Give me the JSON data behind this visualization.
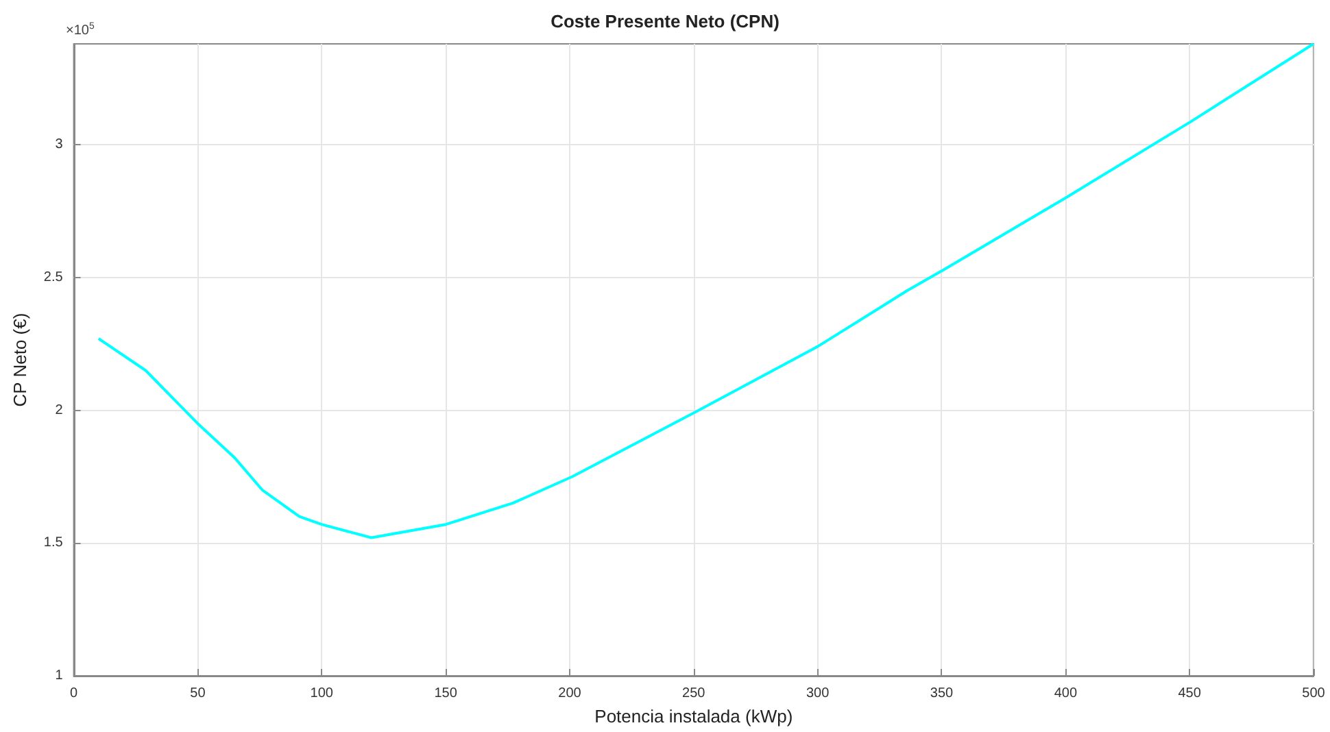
{
  "chart_data": {
    "type": "line",
    "title": "Coste Presente Neto (CPN)",
    "xlabel": "Potencia instalada (kWp)",
    "ylabel": "CP Neto (€)",
    "annotations": [
      "×10$^{5}$"
    ],
    "x": [
      10,
      29,
      50,
      65,
      76,
      91,
      100,
      120,
      150,
      177,
      201,
      250,
      300,
      336,
      351,
      400,
      451,
      500
    ],
    "series": [
      {
        "color": "#00ffff",
        "values": [
          2.27,
          2.15,
          1.95,
          1.82,
          1.7,
          1.6,
          1.57,
          1.52,
          1.57,
          1.65,
          1.75,
          1.99,
          2.24,
          2.45,
          2.53,
          2.8,
          3.09,
          3.38
        ]
      }
    ],
    "xlim": [
      0,
      500
    ],
    "xticks": [
      0,
      50,
      100,
      150,
      200,
      250,
      300,
      350,
      400,
      450,
      500
    ],
    "ylim": [
      1,
      3.38
    ],
    "yticks": [
      1,
      1.5,
      2,
      2.5,
      3
    ],
    "grid": true,
    "marker": "none",
    "line_style": "solid"
  }
}
